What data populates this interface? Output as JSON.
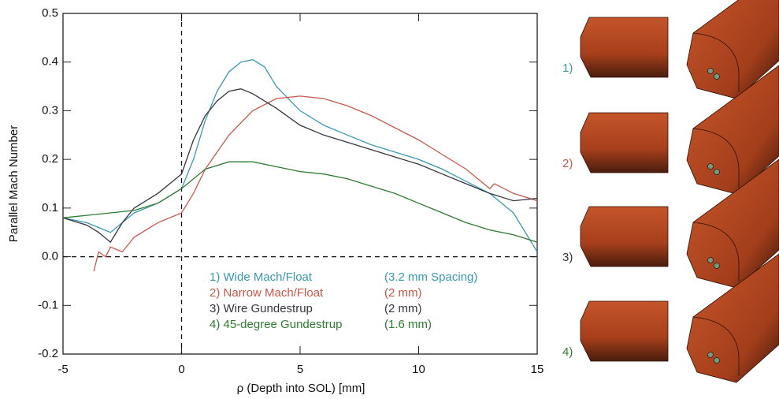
{
  "chart_data": {
    "type": "line",
    "xlabel": "ρ (Depth into SOL) [mm]",
    "ylabel": "Parallel Mach Number",
    "xlim": [
      -5,
      15
    ],
    "xticks": [
      -5,
      0,
      5,
      10,
      15
    ],
    "ylim": [
      -0.2,
      0.5
    ],
    "yticks": [
      0.5,
      0.4,
      0.3,
      0.2,
      0.1,
      {
        "value": 0,
        "label": "0.0"
      },
      -0.1,
      -0.2
    ],
    "reference_lines": {
      "x": [
        0
      ],
      "y": [
        0
      ]
    },
    "series": [
      {
        "name": "1) Wide Mach/Float",
        "note": "(3.2 mm Spacing)",
        "color": "#3a98b2",
        "x": [
          -5,
          -4,
          -3.5,
          -3,
          -2.5,
          -2,
          -1,
          0,
          0.5,
          1,
          1.5,
          2,
          2.5,
          3,
          3.5,
          4,
          5,
          6,
          7,
          8,
          9,
          10,
          11,
          12,
          13,
          14,
          15
        ],
        "values": [
          0.08,
          0.07,
          0.06,
          0.05,
          0.07,
          0.09,
          0.11,
          0.14,
          0.2,
          0.28,
          0.34,
          0.38,
          0.4,
          0.405,
          0.39,
          0.35,
          0.3,
          0.27,
          0.25,
          0.23,
          0.215,
          0.2,
          0.18,
          0.155,
          0.13,
          0.09,
          0.01
        ]
      },
      {
        "name": "2) Narrow Mach/Float",
        "note": "(2 mm)",
        "color": "#c8574a",
        "x": [
          -3.7,
          -3.5,
          -3.2,
          -3,
          -2.5,
          -2,
          -1,
          0,
          0.5,
          1,
          2,
          3,
          4,
          5,
          6,
          7,
          8,
          9,
          10,
          11,
          12,
          13,
          13.2,
          14,
          15
        ],
        "values": [
          -0.03,
          0.01,
          0.0,
          0.02,
          0.01,
          0.04,
          0.07,
          0.09,
          0.13,
          0.18,
          0.25,
          0.3,
          0.325,
          0.33,
          0.325,
          0.31,
          0.29,
          0.265,
          0.24,
          0.21,
          0.18,
          0.14,
          0.15,
          0.13,
          0.115
        ]
      },
      {
        "name": "3) Wire Gundestrup",
        "note": "(2 mm)",
        "color": "#35343f",
        "x": [
          -5,
          -4,
          -3.5,
          -3,
          -2.5,
          -2,
          -1,
          0,
          0.5,
          1,
          1.5,
          2,
          2.5,
          3,
          4,
          5,
          6,
          7,
          8,
          9,
          10,
          11,
          12,
          13,
          14,
          15
        ],
        "values": [
          0.08,
          0.065,
          0.05,
          0.03,
          0.07,
          0.1,
          0.13,
          0.17,
          0.24,
          0.29,
          0.32,
          0.34,
          0.345,
          0.335,
          0.305,
          0.27,
          0.25,
          0.235,
          0.22,
          0.205,
          0.19,
          0.17,
          0.15,
          0.13,
          0.115,
          0.12
        ]
      },
      {
        "name": "4) 45-degree Gundestrup",
        "note": "(1.6 mm)",
        "color": "#2e7a30",
        "x": [
          -5,
          -4,
          -3,
          -2,
          -1,
          0,
          1,
          2,
          3,
          4,
          5,
          6,
          7,
          8,
          9,
          10,
          11,
          12,
          13,
          14,
          15
        ],
        "values": [
          0.08,
          0.085,
          0.09,
          0.095,
          0.11,
          0.14,
          0.18,
          0.195,
          0.195,
          0.185,
          0.175,
          0.17,
          0.16,
          0.145,
          0.13,
          0.11,
          0.09,
          0.07,
          0.055,
          0.045,
          0.03
        ]
      }
    ],
    "probe_labels": [
      "1)",
      "2)",
      "3)",
      "4)"
    ]
  }
}
